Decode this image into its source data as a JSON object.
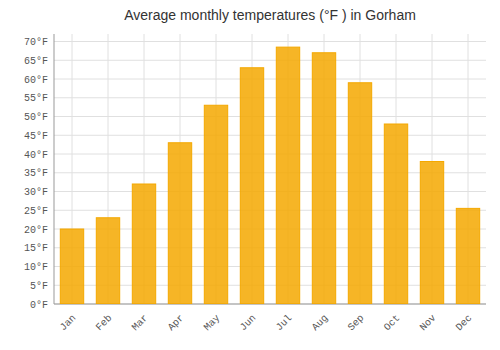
{
  "chart_data": {
    "type": "bar",
    "title": "Average monthly temperatures (°F ) in Gorham",
    "categories": [
      "Jan",
      "Feb",
      "Mar",
      "Apr",
      "May",
      "Jun",
      "Jul",
      "Aug",
      "Sep",
      "Oct",
      "Nov",
      "Dec"
    ],
    "values": [
      20,
      23,
      32,
      43,
      53,
      63,
      68.5,
      67,
      59,
      48,
      38,
      25.5
    ],
    "color": "#F4A800",
    "ylim": [
      0,
      72
    ],
    "yticks": [
      {
        "value": 0,
        "label": "0°F"
      },
      {
        "value": 5,
        "label": "5°F"
      },
      {
        "value": 10,
        "label": "10°F"
      },
      {
        "value": 15,
        "label": "15°F"
      },
      {
        "value": 20,
        "label": "20°F"
      },
      {
        "value": 25,
        "label": "25°F"
      },
      {
        "value": 30,
        "label": "30°F"
      },
      {
        "value": 35,
        "label": "35°F"
      },
      {
        "value": 40,
        "label": "40°F"
      },
      {
        "value": 45,
        "label": "45°F"
      },
      {
        "value": 50,
        "label": "50°F"
      },
      {
        "value": 55,
        "label": "55°F"
      },
      {
        "value": 60,
        "label": "60°F"
      },
      {
        "value": 65,
        "label": "65°F"
      },
      {
        "value": 70,
        "label": "70°F"
      }
    ],
    "grid": true
  }
}
